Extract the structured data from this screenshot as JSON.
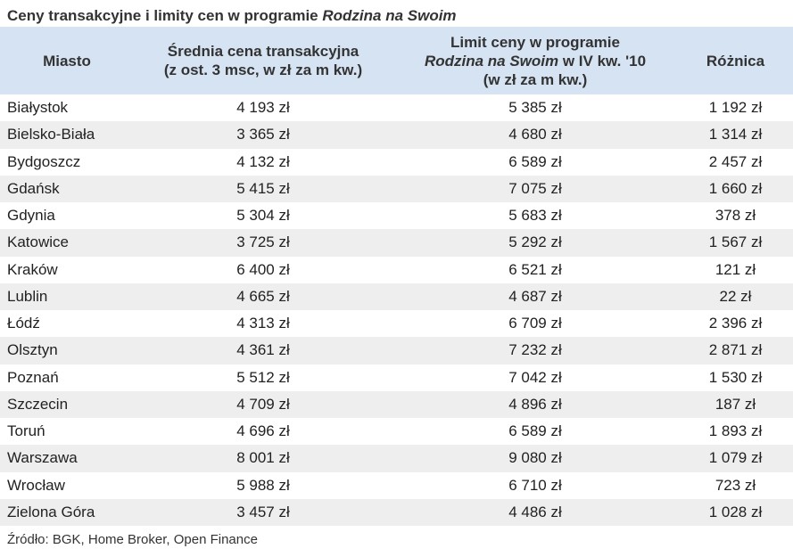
{
  "chart_data": {
    "type": "table",
    "title": {
      "main": "Ceny transakcyjne i limity cen w programie ",
      "italic": "Rodzina na Swoim"
    },
    "columns": {
      "city": "Miasto",
      "avg_price": {
        "line1": "Średnia cena transakcyjna",
        "line2": "(z ost. 3 msc, w zł za m kw.)"
      },
      "limit": {
        "line1": "Limit ceny w programie",
        "line2_italic": "Rodzina na Swoim",
        "line2_rest": " w IV kw. '10",
        "line3": "(w zł za m kw.)"
      },
      "difference": "Różnica"
    },
    "rows": [
      {
        "city": "Białystok",
        "avg_price": "4 193 zł",
        "limit": "5 385 zł",
        "difference": "1 192 zł"
      },
      {
        "city": "Bielsko-Biała",
        "avg_price": "3 365 zł",
        "limit": "4 680 zł",
        "difference": "1 314 zł"
      },
      {
        "city": "Bydgoszcz",
        "avg_price": "4 132 zł",
        "limit": "6 589 zł",
        "difference": "2 457 zł"
      },
      {
        "city": "Gdańsk",
        "avg_price": "5 415 zł",
        "limit": "7 075 zł",
        "difference": "1 660 zł"
      },
      {
        "city": "Gdynia",
        "avg_price": "5 304 zł",
        "limit": "5 683 zł",
        "difference": "378 zł"
      },
      {
        "city": "Katowice",
        "avg_price": "3 725 zł",
        "limit": "5 292 zł",
        "difference": "1 567 zł"
      },
      {
        "city": "Kraków",
        "avg_price": "6 400 zł",
        "limit": "6 521 zł",
        "difference": "121 zł"
      },
      {
        "city": "Lublin",
        "avg_price": "4 665 zł",
        "limit": "4 687 zł",
        "difference": "22 zł"
      },
      {
        "city": "Łódź",
        "avg_price": "4 313 zł",
        "limit": "6 709 zł",
        "difference": "2 396 zł"
      },
      {
        "city": "Olsztyn",
        "avg_price": "4 361 zł",
        "limit": "7 232 zł",
        "difference": "2 871 zł"
      },
      {
        "city": "Poznań",
        "avg_price": "5 512 zł",
        "limit": "7 042 zł",
        "difference": "1 530 zł"
      },
      {
        "city": "Szczecin",
        "avg_price": "4 709 zł",
        "limit": "4 896 zł",
        "difference": "187 zł"
      },
      {
        "city": "Toruń",
        "avg_price": "4 696 zł",
        "limit": "6 589 zł",
        "difference": "1 893 zł"
      },
      {
        "city": "Warszawa",
        "avg_price": "8 001 zł",
        "limit": "9 080 zł",
        "difference": "1 079 zł"
      },
      {
        "city": "Wrocław",
        "avg_price": "5 988 zł",
        "limit": "6 710 zł",
        "difference": "723 zł"
      },
      {
        "city": "Zielona Góra",
        "avg_price": "3 457 zł",
        "limit": "4 486 zł",
        "difference": "1 028 zł"
      }
    ],
    "source": "Źródło: BGK, Home Broker, Open Finance"
  },
  "colors": {
    "header_background": "#d6e3f3",
    "stripe_background": "#eeeeee"
  }
}
